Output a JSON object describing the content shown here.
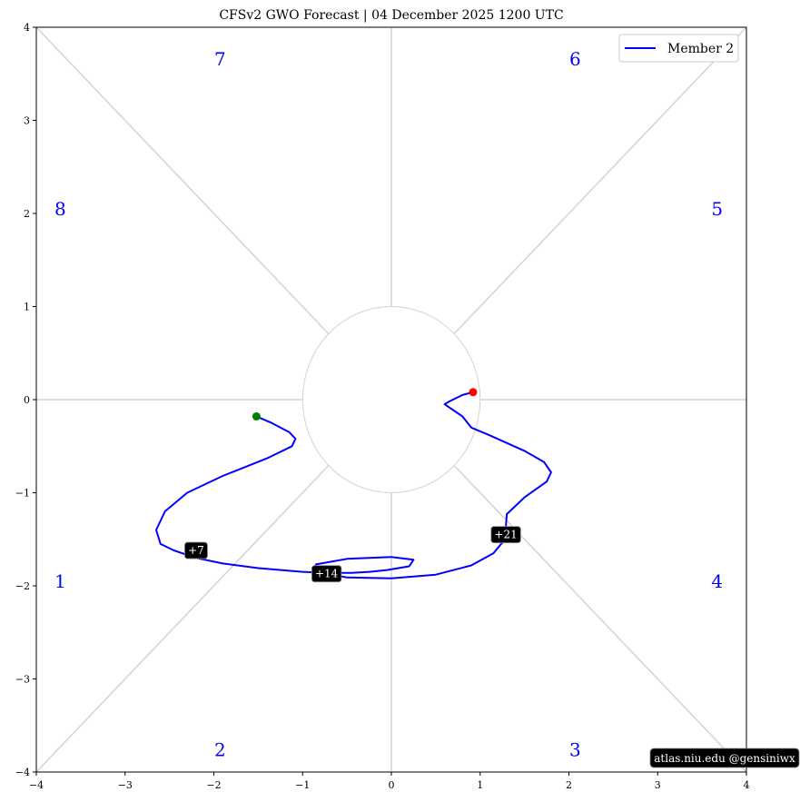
{
  "chart_data": {
    "type": "line",
    "title": "CFSv2 GWO Forecast   |   04  December  2025 1200 UTC",
    "xlabel": "",
    "ylabel": "",
    "xlim": [
      -4,
      4
    ],
    "ylim": [
      -4,
      4
    ],
    "xticks": [
      -4,
      -3,
      -2,
      -1,
      0,
      1,
      2,
      3,
      4
    ],
    "yticks": [
      -4,
      -3,
      -2,
      -1,
      0,
      1,
      2,
      3,
      4
    ],
    "grid": false,
    "legend_position": "top-right",
    "series": [
      {
        "name": "Member 2",
        "color": "#0000ff",
        "x": [
          -1.52,
          -1.35,
          -1.15,
          -1.08,
          -1.12,
          -1.4,
          -1.9,
          -2.3,
          -2.55,
          -2.65,
          -2.6,
          -2.45,
          -2.2,
          -1.9,
          -1.5,
          -1.0,
          -0.7,
          -0.45,
          -0.25,
          -0.05,
          0.2,
          0.25,
          0.0,
          -0.5,
          -0.85,
          -0.85,
          -0.5,
          0.0,
          0.5,
          0.9,
          1.15,
          1.28,
          1.3,
          1.5,
          1.75,
          1.8,
          1.72,
          1.5,
          1.1,
          0.9,
          0.8,
          0.6,
          0.65,
          0.8,
          0.92
        ],
        "y": [
          -0.18,
          -0.25,
          -0.35,
          -0.42,
          -0.5,
          -0.63,
          -0.82,
          -1.0,
          -1.2,
          -1.4,
          -1.55,
          -1.62,
          -1.7,
          -1.76,
          -1.81,
          -1.85,
          -1.86,
          -1.86,
          -1.85,
          -1.83,
          -1.79,
          -1.72,
          -1.69,
          -1.71,
          -1.77,
          -1.85,
          -1.91,
          -1.92,
          -1.88,
          -1.78,
          -1.65,
          -1.5,
          -1.23,
          -1.05,
          -0.88,
          -0.78,
          -0.67,
          -0.55,
          -0.38,
          -0.3,
          -0.18,
          -0.05,
          -0.02,
          0.05,
          0.08
        ]
      }
    ],
    "start_marker": {
      "x": -1.52,
      "y": -0.18,
      "color": "#008000"
    },
    "end_marker": {
      "x": 0.92,
      "y": 0.08,
      "color": "#ff0000"
    },
    "day_labels": [
      {
        "text": "+7",
        "x": -2.2,
        "y": -1.62
      },
      {
        "text": "+14",
        "x": -0.73,
        "y": -1.87
      },
      {
        "text": "+21",
        "x": 1.29,
        "y": -1.45
      }
    ],
    "phase_labels": [
      {
        "text": "1",
        "x": -3.73,
        "y": -1.95
      },
      {
        "text": "2",
        "x": -1.93,
        "y": -3.76
      },
      {
        "text": "3",
        "x": 2.07,
        "y": -3.76
      },
      {
        "text": "4",
        "x": 3.67,
        "y": -1.95
      },
      {
        "text": "5",
        "x": 3.67,
        "y": 2.05
      },
      {
        "text": "6",
        "x": 2.07,
        "y": 3.66
      },
      {
        "text": "7",
        "x": -1.93,
        "y": 3.66
      },
      {
        "text": "8",
        "x": -3.73,
        "y": 2.05
      }
    ],
    "inner_circle_radius": 1.0,
    "reference_line_color": "#d3d3d3",
    "credit": "atlas.niu.edu  @gensiniwx"
  }
}
